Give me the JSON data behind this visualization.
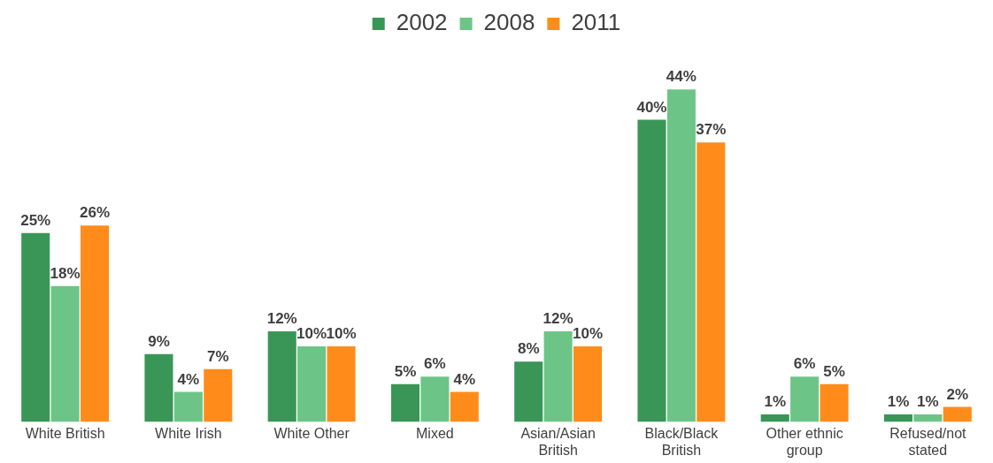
{
  "chart_data": {
    "type": "bar",
    "categories": [
      "White British",
      "White Irish",
      "White Other",
      "Mixed",
      "Asian/Asian British",
      "Black/Black British",
      "Other ethnic group",
      "Refused/not stated"
    ],
    "legend": "top",
    "series": [
      {
        "name": "2002",
        "color": "#3a9656",
        "values": [
          25,
          9,
          12,
          5,
          8,
          40,
          1,
          1
        ],
        "value_labels": [
          "25%",
          "9%",
          "12%",
          "5%",
          "8%",
          "40%",
          "1%",
          "1%"
        ]
      },
      {
        "name": "2008",
        "color": "#6cc586",
        "values": [
          18,
          4,
          10,
          6,
          12,
          44,
          6,
          1
        ],
        "value_labels": [
          "18%",
          "4%",
          "10%",
          "6%",
          "12%",
          "44%",
          "6%",
          "1%"
        ]
      },
      {
        "name": "2011",
        "color": "#ff8c1a",
        "values": [
          26,
          7,
          10,
          4,
          10,
          37,
          5,
          2
        ],
        "value_labels": [
          "26%",
          "7%",
          "10%",
          "4%",
          "10%",
          "37%",
          "5%",
          "2%"
        ]
      }
    ]
  }
}
